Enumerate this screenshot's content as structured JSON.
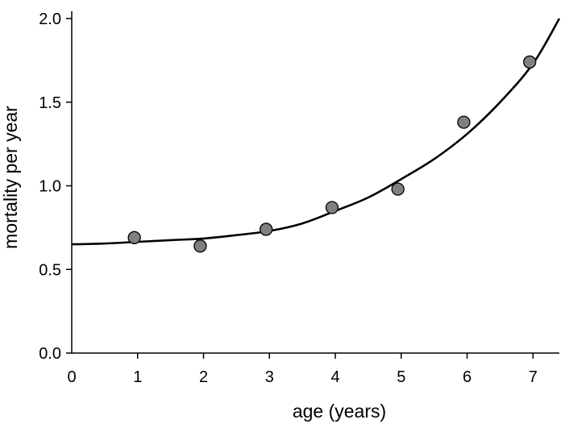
{
  "chart_data": {
    "type": "scatter",
    "xlabel": "age (years)",
    "ylabel": "mortality per year",
    "xlim": [
      0,
      7.4
    ],
    "ylim": [
      0,
      2.0
    ],
    "x_ticks": [
      0,
      1,
      2,
      3,
      4,
      5,
      6,
      7
    ],
    "x_tick_labels": [
      "0",
      "1",
      "2",
      "3",
      "4",
      "5",
      "6",
      "7"
    ],
    "y_ticks": [
      0.0,
      0.5,
      1.0,
      1.5,
      2.0
    ],
    "y_tick_labels": [
      "0.0",
      "0.5",
      "1.0",
      "1.5",
      "2.0"
    ],
    "grid": false,
    "legend": "none",
    "points": [
      {
        "x": 0.95,
        "y": 0.69
      },
      {
        "x": 1.95,
        "y": 0.64
      },
      {
        "x": 2.95,
        "y": 0.74
      },
      {
        "x": 3.95,
        "y": 0.87
      },
      {
        "x": 4.95,
        "y": 0.98
      },
      {
        "x": 5.95,
        "y": 1.38
      },
      {
        "x": 6.95,
        "y": 1.74
      }
    ],
    "fit_curve": {
      "x": [
        0,
        0.5,
        1,
        1.5,
        2,
        2.5,
        3,
        3.5,
        4,
        4.5,
        5,
        5.5,
        6,
        6.5,
        7,
        7.4
      ],
      "y": [
        0.65,
        0.655,
        0.665,
        0.675,
        0.685,
        0.705,
        0.73,
        0.775,
        0.85,
        0.93,
        1.04,
        1.16,
        1.31,
        1.5,
        1.73,
        2.0
      ]
    },
    "colors": {
      "marker_fill": "#808080",
      "marker_stroke": "#000000",
      "curve": "#000000",
      "axis": "#000000"
    }
  }
}
